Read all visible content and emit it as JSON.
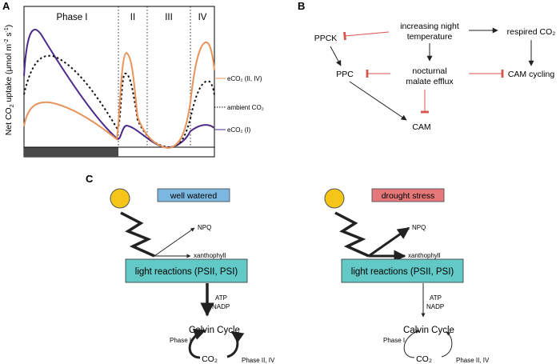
{
  "panel_a": {
    "letter": "A",
    "ylabel_main": "Net CO",
    "ylabel_sub": "2",
    "ylabel_rest": " uptake (μmol m",
    "ylabel_sup1": "-2",
    "ylabel_s": " s",
    "ylabel_sup2": "-1",
    "ylabel_end": ")",
    "phase_labels": [
      "Phase I",
      "II",
      "III",
      "IV"
    ],
    "legend": {
      "eco2_ii_iv": "eCO₂ (II, IV)",
      "ambient": "ambient CO₂",
      "eco2_i": "eCO₂ (I)"
    },
    "colors": {
      "eco2_ii_iv": "#e8935a",
      "ambient": "#111111",
      "eco2_i": "#4b2a8c",
      "night_bar": "#4a4a4a"
    }
  },
  "panel_b": {
    "letter": "B",
    "nodes": {
      "increasing_night_1": "increasing night",
      "increasing_night_2": "temperature",
      "respired": "respired CO₂",
      "ppck": "PPCK",
      "ppc": "PPC",
      "nocturnal_1": "nocturnal",
      "nocturnal_2": "malate efflux",
      "cam_cycling": "CAM cycling",
      "cam": "CAM"
    },
    "colors": {
      "inhibit": "#d9534f",
      "arrow": "#222222"
    }
  },
  "panel_c": {
    "letter": "C",
    "left": {
      "badge": "well watered",
      "badge_color": "#7bb7e0",
      "npq": "NPQ",
      "xanthophyll": "xanthophyll",
      "box": "light reactions (PSII, PSI)",
      "atp": "ATP",
      "nadp": "NADP",
      "calvin": "Calvin Cycle",
      "phase_i": "Phase I",
      "co2": "CO₂",
      "phase_ii_iv": "Phase II, IV"
    },
    "right": {
      "badge": "drought stress",
      "badge_color": "#e5787a",
      "npq": "NPQ",
      "xanthophyll": "xanthophyll",
      "box": "light reactions (PSII, PSI)",
      "atp": "ATP",
      "nadp": "NADP",
      "calvin": "Calvin Cycle",
      "phase_i": "Phase I",
      "co2": "CO₂",
      "phase_ii_iv": "Phase II, IV"
    },
    "colors": {
      "sun": "#f5c518",
      "box": "#62c9c6"
    }
  }
}
